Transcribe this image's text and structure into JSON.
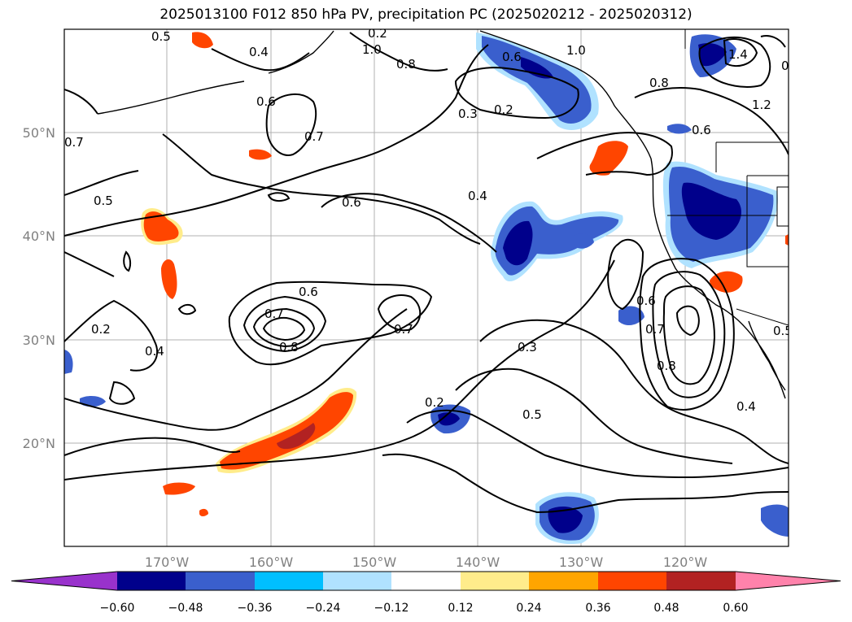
{
  "title": "2025013100 F012 850 hPa PV, precipitation PC (2025020212 - 2025020312)",
  "map": {
    "lat_labels": [
      "50°N",
      "40°N",
      "30°N",
      "20°N"
    ],
    "lon_labels": [
      "170°W",
      "160°W",
      "150°W",
      "140°W",
      "130°W",
      "120°W"
    ]
  },
  "contour_labels": [
    "0.5",
    "0.4",
    "0.2",
    "1.0",
    "0.8",
    "0.6",
    "1.0",
    "1.4",
    "1.2",
    "0.6",
    "0.3",
    "0.2",
    "0.7",
    "0.8",
    "0.6",
    "0.7",
    "0.6",
    "0.5",
    "0.4",
    "0.6",
    "0.7",
    "0.8",
    "0.7",
    "0.6",
    "0.7",
    "0.8",
    "0.5",
    "0.2",
    "0.4",
    "0.3",
    "0.5",
    "0.2",
    "0.4",
    "0.5"
  ],
  "colorbar": {
    "ticks": [
      "−0.60",
      "−0.48",
      "−0.36",
      "−0.24",
      "−0.12",
      "0.12",
      "0.24",
      "0.36",
      "0.48",
      "0.60"
    ],
    "colors": [
      "#9932cc",
      "#00008b",
      "#3a5fcd",
      "#00bfff",
      "#b0e2ff",
      "#ffffff",
      "#ffec8b",
      "#ffa500",
      "#ff4500",
      "#b22222",
      "#ff82ab"
    ]
  }
}
